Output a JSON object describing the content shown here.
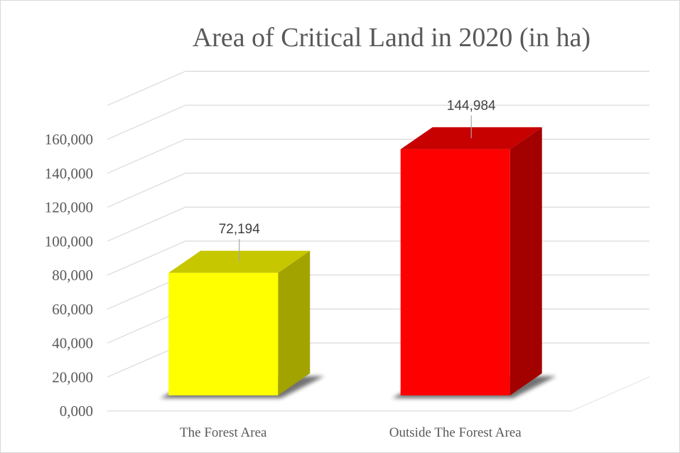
{
  "chart_data": {
    "type": "bar",
    "title": "Area of Critical Land in 2020 (in ha)",
    "xlabel": "",
    "ylabel": "",
    "categories": [
      "The Forest Area",
      "Outside The Forest Area"
    ],
    "values": [
      72194,
      144984
    ],
    "data_labels": [
      "72,194",
      "144,984"
    ],
    "bar_colors": [
      "#ffff00",
      "#ff0000"
    ],
    "y_ticks": [
      0,
      20000,
      40000,
      60000,
      80000,
      100000,
      120000,
      140000,
      160000
    ],
    "y_tick_labels": [
      "0,000",
      "20,000",
      "40,000",
      "60,000",
      "80,000",
      "100,000",
      "120,000",
      "140,000",
      "160,000"
    ],
    "ylim": [
      0,
      160000
    ],
    "grid": true,
    "legend": "none",
    "style": "3d-column"
  }
}
